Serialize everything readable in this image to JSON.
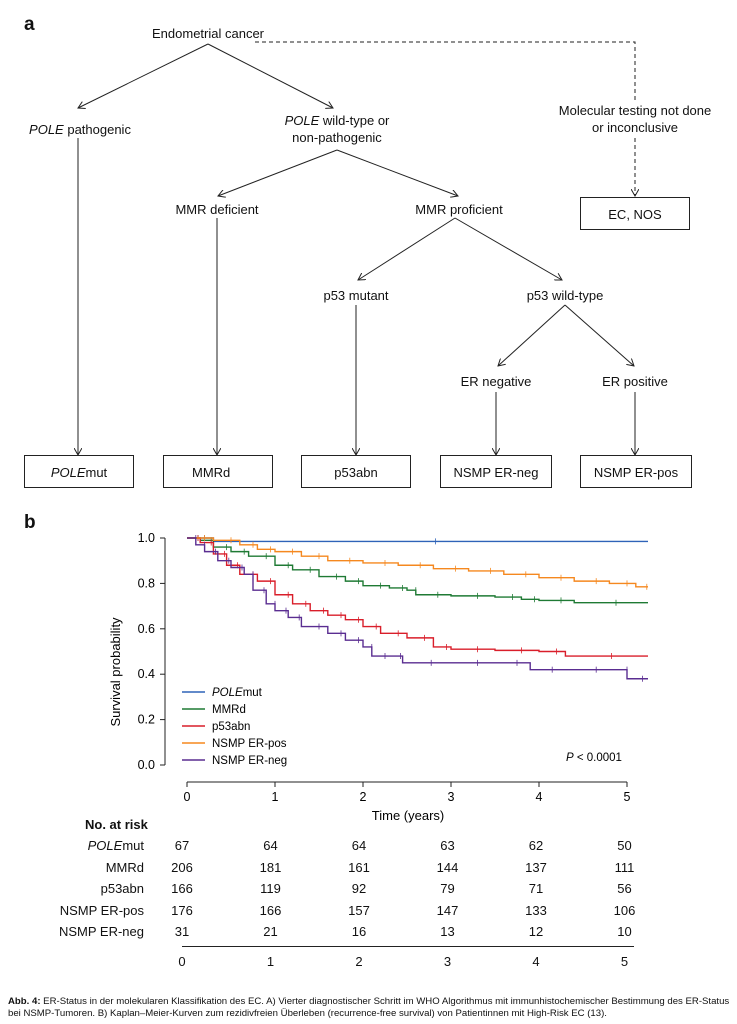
{
  "panel_a": {
    "letter": "a",
    "root": "Endometrial cancer",
    "pole_pathogenic_em": "POLE",
    "pole_pathogenic_rest": " pathogenic",
    "pole_wt_em": "POLE",
    "pole_wt_rest": " wild-type or",
    "pole_wt_line2": "non-pathogenic",
    "mmr_deficient": "MMR deficient",
    "mmr_proficient": "MMR proficient",
    "p53_mutant": "p53 mutant",
    "p53_wildtype": "p53 wild-type",
    "er_negative": "ER negative",
    "er_positive": "ER positive",
    "molecular_line1": "Molecular testing not done",
    "molecular_line2": "or inconclusive",
    "box_ecnos": "EC, NOS",
    "box_polemut_em": "POLE",
    "box_polemut_rest": "mut",
    "box_mmrd": "MMRd",
    "box_p53abn": "p53abn",
    "box_nsmp_neg": "NSMP ER-neg",
    "box_nsmp_pos": "NSMP ER-pos"
  },
  "panel_b": {
    "letter": "b",
    "chart_data": {
      "type": "line",
      "xlabel": "Time (years)",
      "ylabel": "Survival probability",
      "xlim": [
        0,
        5.25
      ],
      "ylim": [
        0,
        1.0
      ],
      "x_ticks": [
        0,
        1,
        2,
        3,
        4,
        5
      ],
      "y_ticks": [
        "0.0",
        "0.2",
        "0.4",
        "0.6",
        "0.8",
        "1.0"
      ],
      "annotation_p": "P",
      "annotation_rest": " < 0.0001",
      "legend_position": "bottom-left",
      "series": [
        {
          "name": "POLEmut",
          "name_em": "POLE",
          "name_rest": "mut",
          "color": "#2f63b8",
          "points": [
            [
              0,
              1.0
            ],
            [
              0.3,
              0.985
            ],
            [
              5.25,
              0.985
            ]
          ]
        },
        {
          "name": "MMRd",
          "name_em": "",
          "name_rest": "MMRd",
          "color": "#1f7a34",
          "points": [
            [
              0,
              1.0
            ],
            [
              0.15,
              0.99
            ],
            [
              0.3,
              0.96
            ],
            [
              0.5,
              0.94
            ],
            [
              0.7,
              0.92
            ],
            [
              1.0,
              0.88
            ],
            [
              1.2,
              0.86
            ],
            [
              1.5,
              0.83
            ],
            [
              1.8,
              0.81
            ],
            [
              2.0,
              0.79
            ],
            [
              2.3,
              0.78
            ],
            [
              2.5,
              0.77
            ],
            [
              2.6,
              0.75
            ],
            [
              3.0,
              0.745
            ],
            [
              3.5,
              0.74
            ],
            [
              3.8,
              0.73
            ],
            [
              4.0,
              0.725
            ],
            [
              4.4,
              0.715
            ],
            [
              5.25,
              0.715
            ]
          ]
        },
        {
          "name": "p53abn",
          "name_em": "",
          "name_rest": "p53abn",
          "color": "#d91e2a",
          "points": [
            [
              0,
              1.0
            ],
            [
              0.15,
              0.98
            ],
            [
              0.3,
              0.93
            ],
            [
              0.45,
              0.88
            ],
            [
              0.6,
              0.84
            ],
            [
              0.8,
              0.81
            ],
            [
              1.0,
              0.75
            ],
            [
              1.2,
              0.71
            ],
            [
              1.4,
              0.68
            ],
            [
              1.6,
              0.66
            ],
            [
              1.8,
              0.64
            ],
            [
              2.0,
              0.61
            ],
            [
              2.2,
              0.58
            ],
            [
              2.5,
              0.56
            ],
            [
              2.8,
              0.52
            ],
            [
              3.0,
              0.51
            ],
            [
              3.5,
              0.505
            ],
            [
              4.0,
              0.5
            ],
            [
              4.3,
              0.48
            ],
            [
              5.25,
              0.48
            ]
          ]
        },
        {
          "name": "NSMP ER-pos",
          "name_em": "",
          "name_rest": "NSMP ER-pos",
          "color": "#f5881f",
          "points": [
            [
              0,
              1.0
            ],
            [
              0.3,
              0.99
            ],
            [
              0.6,
              0.97
            ],
            [
              0.8,
              0.95
            ],
            [
              1.0,
              0.94
            ],
            [
              1.3,
              0.92
            ],
            [
              1.6,
              0.9
            ],
            [
              2.0,
              0.89
            ],
            [
              2.4,
              0.88
            ],
            [
              2.8,
              0.865
            ],
            [
              3.2,
              0.855
            ],
            [
              3.6,
              0.84
            ],
            [
              4.0,
              0.825
            ],
            [
              4.4,
              0.81
            ],
            [
              4.8,
              0.8
            ],
            [
              5.1,
              0.785
            ],
            [
              5.25,
              0.785
            ]
          ]
        },
        {
          "name": "NSMP ER-neg",
          "name_em": "",
          "name_rest": "NSMP ER-neg",
          "color": "#5a2d91",
          "points": [
            [
              0,
              1.0
            ],
            [
              0.1,
              0.97
            ],
            [
              0.2,
              0.94
            ],
            [
              0.35,
              0.9
            ],
            [
              0.5,
              0.87
            ],
            [
              0.65,
              0.84
            ],
            [
              0.75,
              0.77
            ],
            [
              0.9,
              0.71
            ],
            [
              1.0,
              0.68
            ],
            [
              1.15,
              0.65
            ],
            [
              1.3,
              0.61
            ],
            [
              1.6,
              0.58
            ],
            [
              1.8,
              0.55
            ],
            [
              2.0,
              0.52
            ],
            [
              2.1,
              0.48
            ],
            [
              2.3,
              0.48
            ],
            [
              2.45,
              0.45
            ],
            [
              3.0,
              0.45
            ],
            [
              3.5,
              0.45
            ],
            [
              3.9,
              0.42
            ],
            [
              4.3,
              0.42
            ],
            [
              4.9,
              0.42
            ],
            [
              5.0,
              0.38
            ],
            [
              5.25,
              0.38
            ]
          ]
        }
      ]
    },
    "risk_table": {
      "title": "No. at risk",
      "rows": [
        {
          "label_em": "POLE",
          "label_rest": "mut",
          "values": [
            "67",
            "64",
            "64",
            "63",
            "62",
            "50"
          ]
        },
        {
          "label_em": "",
          "label_rest": "MMRd",
          "values": [
            "206",
            "181",
            "161",
            "144",
            "137",
            "111"
          ]
        },
        {
          "label_em": "",
          "label_rest": "p53abn",
          "values": [
            "166",
            "119",
            "92",
            "79",
            "71",
            "56"
          ]
        },
        {
          "label_em": "",
          "label_rest": "NSMP ER-pos",
          "values": [
            "176",
            "166",
            "157",
            "147",
            "133",
            "106"
          ]
        },
        {
          "label_em": "",
          "label_rest": "NSMP ER-neg",
          "values": [
            "31",
            "21",
            "16",
            "13",
            "12",
            "10"
          ]
        }
      ],
      "x_ticks": [
        "0",
        "1",
        "2",
        "3",
        "4",
        "5"
      ]
    }
  },
  "caption": {
    "label": "Abb. 4:",
    "text": " ER-Status in der molekularen Klassifikation des EC. A) Vierter diagnostischer Schritt im WHO Algorithmus mit immunhistochemischer Bestimmung des ER-Status bei NSMP-Tumoren. B) Kaplan–Meier-Kurven zum rezidivfreien Überleben (recurrence-free survival) von Patientinnen mit High-Risk EC (13)."
  }
}
